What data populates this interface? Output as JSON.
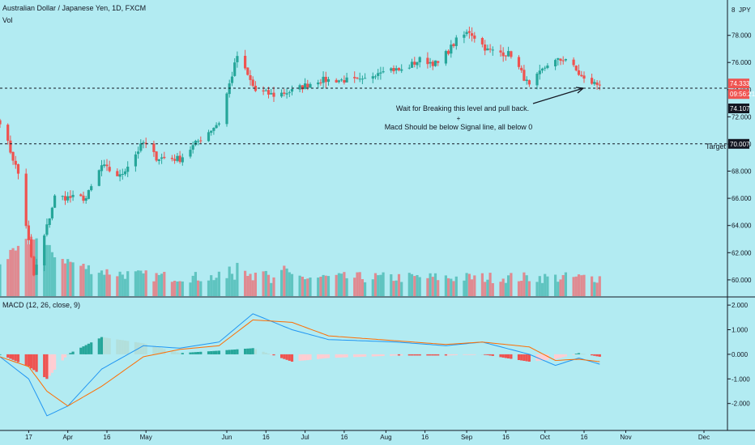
{
  "header": {
    "symbol_line": "Australian Dollar / Japanese Yen, 1D, FXCM",
    "volume_label": "Vol",
    "macd_label": "MACD (12, 26, close, 9)"
  },
  "colors": {
    "background": "#b2ebf2",
    "up": "#26a69a",
    "down": "#ef5350",
    "volume_up": "#5fc4c0",
    "volume_down": "#e08a91",
    "macd_line": "#2196f3",
    "signal_line": "#ff6d00",
    "hist_up_strong": "#26a69a",
    "hist_up_weak": "#b2dfdb",
    "hist_down_strong": "#ef5350",
    "hist_down_weak": "#ffcdd2",
    "price_badge": "#ef5350",
    "level_badge": "#131722"
  },
  "annotations": {
    "note_line1": "Wait for Breaking this level and pull back.",
    "note_plus": "+",
    "note_line2": "Macd Should be below Signal line, all below 0",
    "target_label": "Target"
  },
  "price_axis": {
    "currency": "JPY",
    "ticks": [
      "78.000",
      "76.000",
      "74.000",
      "72.000",
      "70.000",
      "68.000",
      "66.000",
      "64.000",
      "62.000",
      "60.000"
    ],
    "top_label": "8"
  },
  "macd_axis": {
    "ticks": [
      "2.000",
      "1.000",
      "0.000",
      "-1.000",
      "-2.000"
    ]
  },
  "badges": {
    "last_price": "74.333",
    "countdown": "09:56:21",
    "level_1": "74.107",
    "level_2": "70.007"
  },
  "time_axis": [
    "17",
    "Apr",
    "16",
    "May",
    "Jun",
    "16",
    "Jul",
    "16",
    "Aug",
    "16",
    "Sep",
    "16",
    "Oct",
    "16",
    "Nov",
    "Dec"
  ],
  "chart_data": {
    "type": "candlestick",
    "title": "Australian Dollar / Japanese Yen, 1D, FXCM",
    "x_range": [
      "2020-03-06",
      "2020-12-10"
    ],
    "y_range": [
      58.8,
      80.6
    ],
    "horizontal_levels": [
      74.107,
      70.007
    ],
    "last_price": 74.333,
    "price_key_points": [
      {
        "date": "2020-03-06",
        "close": 71.7
      },
      {
        "date": "2020-03-13",
        "close": 67.8
      },
      {
        "date": "2020-03-19",
        "close": 60.3
      },
      {
        "date": "2020-03-27",
        "close": 66.1
      },
      {
        "date": "2020-04-08",
        "close": 66.0
      },
      {
        "date": "2020-04-14",
        "close": 68.4
      },
      {
        "date": "2020-04-21",
        "close": 67.6
      },
      {
        "date": "2020-04-30",
        "close": 70.1
      },
      {
        "date": "2020-05-05",
        "close": 69.0
      },
      {
        "date": "2020-05-14",
        "close": 68.9
      },
      {
        "date": "2020-05-22",
        "close": 70.4
      },
      {
        "date": "2020-05-29",
        "close": 71.6
      },
      {
        "date": "2020-06-05",
        "close": 76.5
      },
      {
        "date": "2020-06-12",
        "close": 73.9
      },
      {
        "date": "2020-06-19",
        "close": 73.6
      },
      {
        "date": "2020-06-26",
        "close": 73.9
      },
      {
        "date": "2020-07-06",
        "close": 74.7
      },
      {
        "date": "2020-07-16",
        "close": 74.7
      },
      {
        "date": "2020-07-23",
        "close": 74.6
      },
      {
        "date": "2020-07-31",
        "close": 75.6
      },
      {
        "date": "2020-08-07",
        "close": 75.4
      },
      {
        "date": "2020-08-14",
        "close": 76.2
      },
      {
        "date": "2020-08-21",
        "close": 75.9
      },
      {
        "date": "2020-08-28",
        "close": 77.6
      },
      {
        "date": "2020-09-02",
        "close": 78.3
      },
      {
        "date": "2020-09-09",
        "close": 76.9
      },
      {
        "date": "2020-09-18",
        "close": 76.6
      },
      {
        "date": "2020-09-25",
        "close": 74.2
      },
      {
        "date": "2020-10-02",
        "close": 75.9
      },
      {
        "date": "2020-10-09",
        "close": 76.3
      },
      {
        "date": "2020-10-16",
        "close": 74.7
      },
      {
        "date": "2020-10-22",
        "close": 74.33
      }
    ],
    "volume_max_date": "2020-03-19",
    "macd_range": [
      -2.7,
      2.3
    ],
    "macd_key_points": [
      {
        "date": "2020-03-06",
        "macd": -0.1,
        "signal": -0.1
      },
      {
        "date": "2020-03-17",
        "macd": -1.0,
        "signal": -0.5
      },
      {
        "date": "2020-03-24",
        "macd": -2.5,
        "signal": -1.5
      },
      {
        "date": "2020-04-01",
        "macd": -2.1,
        "signal": -2.1
      },
      {
        "date": "2020-04-14",
        "macd": -0.6,
        "signal": -1.3
      },
      {
        "date": "2020-04-30",
        "macd": 0.35,
        "signal": -0.1
      },
      {
        "date": "2020-05-14",
        "macd": 0.25,
        "signal": 0.2
      },
      {
        "date": "2020-05-29",
        "macd": 0.5,
        "signal": 0.35
      },
      {
        "date": "2020-06-11",
        "macd": 1.65,
        "signal": 1.4
      },
      {
        "date": "2020-06-26",
        "macd": 1.0,
        "signal": 1.3
      },
      {
        "date": "2020-07-10",
        "macd": 0.6,
        "signal": 0.75
      },
      {
        "date": "2020-08-05",
        "macd": 0.5,
        "signal": 0.55
      },
      {
        "date": "2020-08-24",
        "macd": 0.35,
        "signal": 0.4
      },
      {
        "date": "2020-09-07",
        "macd": 0.5,
        "signal": 0.5
      },
      {
        "date": "2020-09-25",
        "macd": 0.0,
        "signal": 0.3
      },
      {
        "date": "2020-10-05",
        "macd": -0.45,
        "signal": -0.25
      },
      {
        "date": "2020-10-14",
        "macd": -0.15,
        "signal": -0.2
      },
      {
        "date": "2020-10-22",
        "macd": -0.4,
        "signal": -0.3
      }
    ]
  }
}
